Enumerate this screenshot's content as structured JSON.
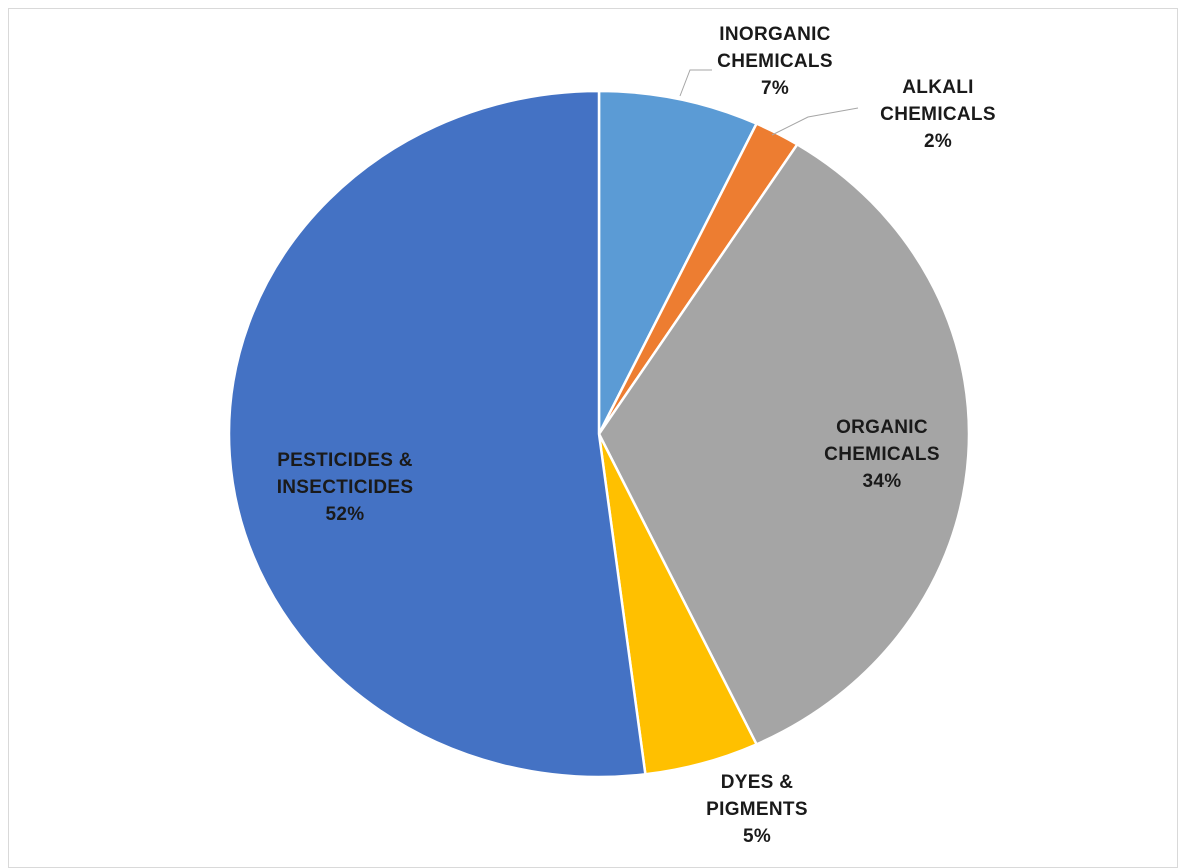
{
  "chart_data": {
    "type": "pie",
    "categories": [
      "INORGANIC CHEMICALS",
      "ALKALI CHEMICALS",
      "ORGANIC CHEMICALS",
      "DYES & PIGMENTS",
      "PESTICIDES & INSECTICIDES"
    ],
    "values": [
      7,
      2,
      34,
      5,
      52
    ],
    "value_labels": [
      "7%",
      "2%",
      "34%",
      "5%",
      "52%"
    ],
    "colors": [
      "#5b9bd5",
      "#ed7d31",
      "#a5a5a5",
      "#ffc000",
      "#4472c4"
    ]
  }
}
